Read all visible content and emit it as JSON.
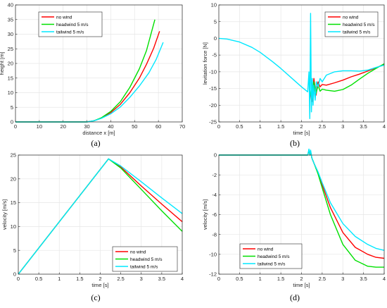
{
  "colors": {
    "no_wind": "#ff0000",
    "headwind": "#00e000",
    "tailwind": "#00e8ff",
    "grid": "#e6e6e6",
    "axis": "#262626"
  },
  "chart_data": [
    {
      "id": "a",
      "caption": "(a)",
      "type": "line",
      "xlabel": "distance x [m]",
      "ylabel": "height [m]",
      "xlim": [
        0,
        70
      ],
      "ylim": [
        0,
        40
      ],
      "xticks": [
        0,
        10,
        20,
        30,
        40,
        50,
        60,
        70
      ],
      "yticks": [
        0,
        5,
        10,
        15,
        20,
        25,
        30,
        35,
        40
      ],
      "grid": true,
      "legend_position": "top-left",
      "series": [
        {
          "name": "no wind",
          "color_key": "no_wind",
          "x": [
            0,
            25,
            30,
            33,
            36,
            40,
            44,
            48,
            52,
            55,
            58,
            60.5
          ],
          "y": [
            0,
            0,
            0,
            0.4,
            1.3,
            3.2,
            6.0,
            10.0,
            15.0,
            19.7,
            25.2,
            31.0
          ]
        },
        {
          "name": "headwind 5 m/s",
          "color_key": "headwind",
          "x": [
            0,
            25,
            30,
            33,
            36,
            40,
            44,
            48,
            52,
            55,
            58.5
          ],
          "y": [
            0,
            0,
            0,
            0.4,
            1.4,
            3.6,
            6.9,
            11.8,
            18.2,
            24.4,
            35.0
          ]
        },
        {
          "name": "tailwind 5 m/s",
          "color_key": "tailwind",
          "x": [
            0,
            25,
            30,
            33,
            36,
            40,
            44,
            48,
            52,
            56,
            59,
            62
          ],
          "y": [
            0,
            0,
            0,
            0.4,
            1.2,
            2.8,
            5.1,
            8.4,
            12.3,
            16.8,
            21.3,
            27.2
          ]
        }
      ]
    },
    {
      "id": "b",
      "caption": "(b)",
      "type": "line",
      "xlabel": "time [s]",
      "ylabel": "levitation force [N]",
      "xlim": [
        0,
        4
      ],
      "ylim": [
        -25,
        10
      ],
      "xticks": [
        0,
        0.5,
        1,
        1.5,
        2,
        2.5,
        3,
        3.5,
        4
      ],
      "yticks": [
        -25,
        -20,
        -15,
        -10,
        -5,
        0,
        5,
        10
      ],
      "grid": true,
      "legend_position": "top-right",
      "series": [
        {
          "name": "no wind",
          "color_key": "no_wind",
          "x": [
            2.2,
            2.25,
            2.3,
            2.35,
            2.4,
            2.45,
            2.5,
            2.6,
            2.8,
            3.0,
            3.2,
            3.4,
            3.6,
            3.8,
            4.0
          ],
          "y": [
            -15.5,
            -19.0,
            -12.0,
            -17.0,
            -13.0,
            -14.5,
            -13.8,
            -14.0,
            -13.3,
            -12.5,
            -11.5,
            -10.7,
            -9.8,
            -8.8,
            -7.8
          ]
        },
        {
          "name": "headwind 5 m/s",
          "color_key": "headwind",
          "x": [
            2.2,
            2.25,
            2.3,
            2.35,
            2.4,
            2.45,
            2.5,
            2.6,
            2.8,
            3.0,
            3.2,
            3.4,
            3.6,
            3.8,
            4.0
          ],
          "y": [
            -15.5,
            -18.0,
            -13.0,
            -16.5,
            -14.0,
            -15.8,
            -15.2,
            -15.5,
            -15.8,
            -15.3,
            -14.0,
            -12.2,
            -10.5,
            -9.0,
            -7.6
          ]
        },
        {
          "name": "tailwind 5 m/s",
          "color_key": "tailwind",
          "x": [
            0,
            0.2,
            0.5,
            0.8,
            1.0,
            1.3,
            1.5,
            1.8,
            2.0,
            2.15,
            2.18,
            2.2,
            2.22,
            2.24,
            2.26,
            2.28,
            2.3,
            2.33,
            2.36,
            2.4,
            2.45,
            2.5,
            2.6,
            2.8,
            3.0,
            3.2,
            3.4,
            3.6,
            3.8,
            4.0
          ],
          "y": [
            0,
            -0.2,
            -1.1,
            -2.7,
            -4.2,
            -7.0,
            -9.0,
            -12.3,
            -14.5,
            -16.0,
            -10.0,
            -24.0,
            7.5,
            -22.0,
            -12.0,
            -20.0,
            -14.0,
            -18.5,
            -13.0,
            -14.5,
            -12.0,
            -13.0,
            -11.0,
            -10.0,
            -9.7,
            -9.7,
            -9.8,
            -9.5,
            -8.7,
            -8.0
          ]
        }
      ]
    },
    {
      "id": "c",
      "caption": "(c)",
      "type": "line",
      "xlabel": "time [s]",
      "ylabel": "velocity [m/s]",
      "xlim": [
        0,
        4
      ],
      "ylim": [
        0,
        25
      ],
      "xticks": [
        0,
        0.5,
        1,
        1.5,
        2,
        2.5,
        3,
        3.5,
        4
      ],
      "yticks": [
        0,
        5,
        10,
        15,
        20,
        25
      ],
      "grid": true,
      "legend_position": "bottom-right",
      "series": [
        {
          "name": "no wind",
          "color_key": "no_wind",
          "x": [
            0,
            2.2,
            2.5,
            3.0,
            3.5,
            4.0
          ],
          "y": [
            0,
            24.2,
            22.5,
            18.5,
            14.7,
            11.0
          ]
        },
        {
          "name": "headwind 5 m/s",
          "color_key": "headwind",
          "x": [
            0,
            2.2,
            2.5,
            3.0,
            3.5,
            4.0
          ],
          "y": [
            0,
            24.2,
            22.3,
            17.8,
            13.3,
            9.0
          ]
        },
        {
          "name": "tailwind 5 m/s",
          "color_key": "tailwind",
          "x": [
            0,
            2.2,
            2.5,
            3.0,
            3.5,
            4.0
          ],
          "y": [
            0,
            24.2,
            22.7,
            19.4,
            16.0,
            12.7
          ]
        }
      ]
    },
    {
      "id": "d",
      "caption": "(d)",
      "type": "line",
      "xlabel": "time [s]",
      "ylabel": "velocity [m/s]",
      "xlim": [
        0,
        4
      ],
      "ylim": [
        -12,
        0
      ],
      "xticks": [
        0,
        0.5,
        1,
        1.5,
        2,
        2.5,
        3,
        3.5,
        4
      ],
      "yticks": [
        -12,
        -10,
        -8,
        -6,
        -4,
        -2,
        0
      ],
      "grid": true,
      "legend_position": "bottom-left",
      "series": [
        {
          "name": "no wind",
          "color_key": "no_wind",
          "x": [
            0,
            2.0,
            2.15,
            2.18,
            2.2,
            2.22,
            2.25,
            2.3,
            2.4,
            2.5,
            2.7,
            3.0,
            3.3,
            3.6,
            3.8,
            4.0
          ],
          "y": [
            0,
            0,
            0,
            0.5,
            0.0,
            0.4,
            -0.3,
            -0.8,
            -1.8,
            -3.0,
            -5.3,
            -7.8,
            -9.3,
            -10.0,
            -10.3,
            -10.4
          ]
        },
        {
          "name": "headwind 5 m/s",
          "color_key": "headwind",
          "x": [
            0,
            2.0,
            2.15,
            2.18,
            2.2,
            2.22,
            2.25,
            2.3,
            2.4,
            2.5,
            2.7,
            3.0,
            3.3,
            3.6,
            3.8,
            4.0
          ],
          "y": [
            0,
            0,
            0,
            0.5,
            0.0,
            0.4,
            -0.3,
            -0.8,
            -1.9,
            -3.3,
            -6.0,
            -9.0,
            -10.6,
            -11.2,
            -11.3,
            -11.3
          ]
        },
        {
          "name": "tailwind 5 m/s",
          "color_key": "tailwind",
          "x": [
            0,
            2.0,
            2.15,
            2.18,
            2.2,
            2.22,
            2.25,
            2.3,
            2.4,
            2.5,
            2.7,
            3.0,
            3.3,
            3.6,
            3.8,
            4.0
          ],
          "y": [
            0,
            0,
            0,
            0.6,
            0.0,
            0.5,
            -0.3,
            -0.8,
            -1.7,
            -2.8,
            -4.8,
            -6.9,
            -8.2,
            -9.0,
            -9.4,
            -9.6
          ]
        }
      ]
    }
  ]
}
